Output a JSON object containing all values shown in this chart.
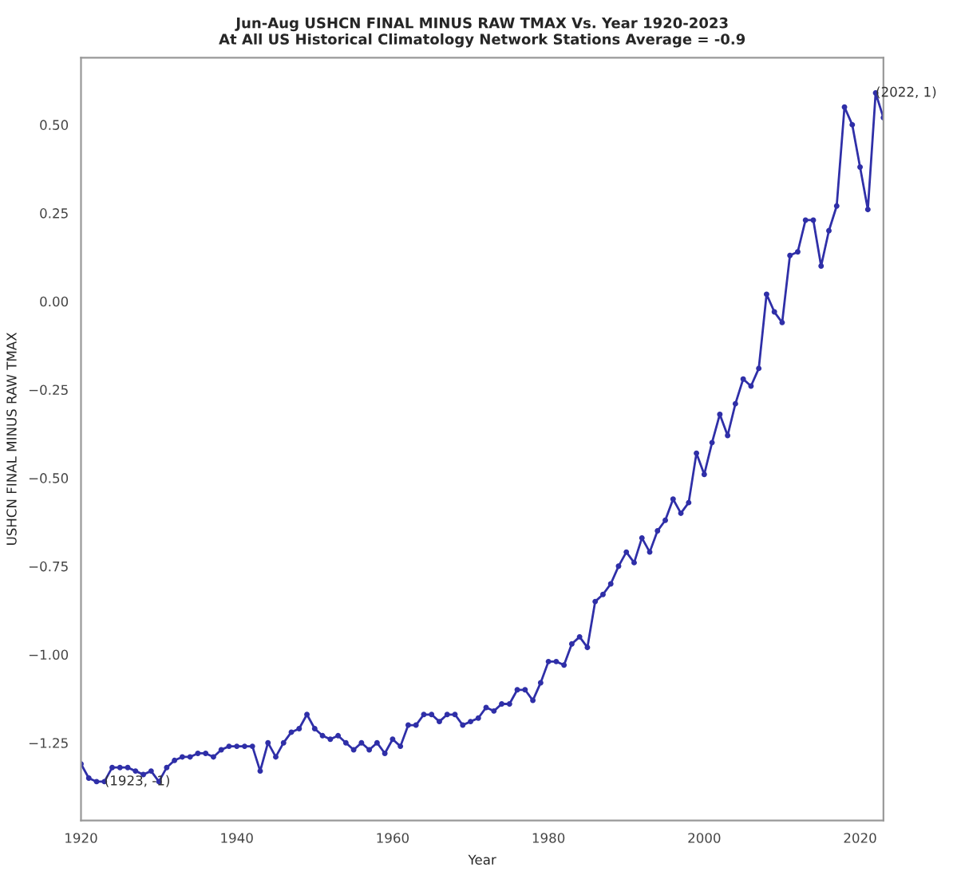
{
  "chart_data": {
    "type": "line",
    "title": "Jun-Aug USHCN FINAL MINUS RAW TMAX Vs. Year 1920-2023\nAt All US Historical Climatology Network Stations Average = -0.9",
    "xlabel": "Year",
    "ylabel": "USHCN FINAL MINUS RAW TMAX",
    "x": [
      1920,
      1921,
      1922,
      1923,
      1924,
      1925,
      1926,
      1927,
      1928,
      1929,
      1930,
      1931,
      1932,
      1933,
      1934,
      1935,
      1936,
      1937,
      1938,
      1939,
      1940,
      1941,
      1942,
      1943,
      1944,
      1945,
      1946,
      1947,
      1948,
      1949,
      1950,
      1951,
      1952,
      1953,
      1954,
      1955,
      1956,
      1957,
      1958,
      1959,
      1960,
      1961,
      1962,
      1963,
      1964,
      1965,
      1966,
      1967,
      1968,
      1969,
      1970,
      1971,
      1972,
      1973,
      1974,
      1975,
      1976,
      1977,
      1978,
      1979,
      1980,
      1981,
      1982,
      1983,
      1984,
      1985,
      1986,
      1987,
      1988,
      1989,
      1990,
      1991,
      1992,
      1993,
      1994,
      1995,
      1996,
      1997,
      1998,
      1999,
      2000,
      2001,
      2002,
      2003,
      2004,
      2005,
      2006,
      2007,
      2008,
      2009,
      2010,
      2011,
      2012,
      2013,
      2014,
      2015,
      2016,
      2017,
      2018,
      2019,
      2020,
      2021,
      2022,
      2023
    ],
    "series": [
      {
        "color": "#2f2fa8",
        "values": [
          -1.31,
          -1.35,
          -1.36,
          -1.36,
          -1.32,
          -1.32,
          -1.32,
          -1.33,
          -1.34,
          -1.33,
          -1.36,
          -1.32,
          -1.3,
          -1.29,
          -1.29,
          -1.28,
          -1.28,
          -1.29,
          -1.27,
          -1.26,
          -1.26,
          -1.26,
          -1.26,
          -1.33,
          -1.25,
          -1.29,
          -1.25,
          -1.22,
          -1.21,
          -1.17,
          -1.21,
          -1.23,
          -1.24,
          -1.23,
          -1.25,
          -1.27,
          -1.25,
          -1.27,
          -1.25,
          -1.28,
          -1.24,
          -1.26,
          -1.2,
          -1.2,
          -1.17,
          -1.17,
          -1.19,
          -1.17,
          -1.17,
          -1.2,
          -1.19,
          -1.18,
          -1.15,
          -1.16,
          -1.14,
          -1.14,
          -1.1,
          -1.1,
          -1.13,
          -1.08,
          -1.02,
          -1.02,
          -1.03,
          -0.97,
          -0.95,
          -0.98,
          -0.85,
          -0.83,
          -0.8,
          -0.75,
          -0.71,
          -0.74,
          -0.67,
          -0.71,
          -0.65,
          -0.62,
          -0.56,
          -0.6,
          -0.57,
          -0.43,
          -0.49,
          -0.4,
          -0.32,
          -0.38,
          -0.29,
          -0.22,
          -0.24,
          -0.19,
          0.02,
          -0.03,
          -0.06,
          0.13,
          0.14,
          0.23,
          0.23,
          0.1,
          0.2,
          0.27,
          0.55,
          0.5,
          0.38,
          0.26,
          0.59,
          0.52
        ]
      }
    ],
    "xlim": [
      1920,
      2023
    ],
    "xticks": [
      1920,
      1940,
      1960,
      1980,
      2000,
      2020
    ],
    "ylim": [
      -1.47,
      0.69
    ],
    "yticks": [
      {
        "value": -1.25,
        "label": "−1.25"
      },
      {
        "value": -1.0,
        "label": "−1.00"
      },
      {
        "value": -0.75,
        "label": "−0.75"
      },
      {
        "value": -0.5,
        "label": "−0.50"
      },
      {
        "value": -0.25,
        "label": "−0.25"
      },
      {
        "value": 0.0,
        "label": "0.00"
      },
      {
        "value": 0.25,
        "label": "0.25"
      },
      {
        "value": 0.5,
        "label": "0.50"
      }
    ],
    "annotations": [
      {
        "text": "(1923, -1)",
        "x": 1923,
        "y": -1.36
      },
      {
        "text": "(2022, 1)",
        "x": 2022,
        "y": 0.59
      }
    ],
    "marker": "circle",
    "line_style": "solid",
    "grid": false,
    "legend": false
  }
}
